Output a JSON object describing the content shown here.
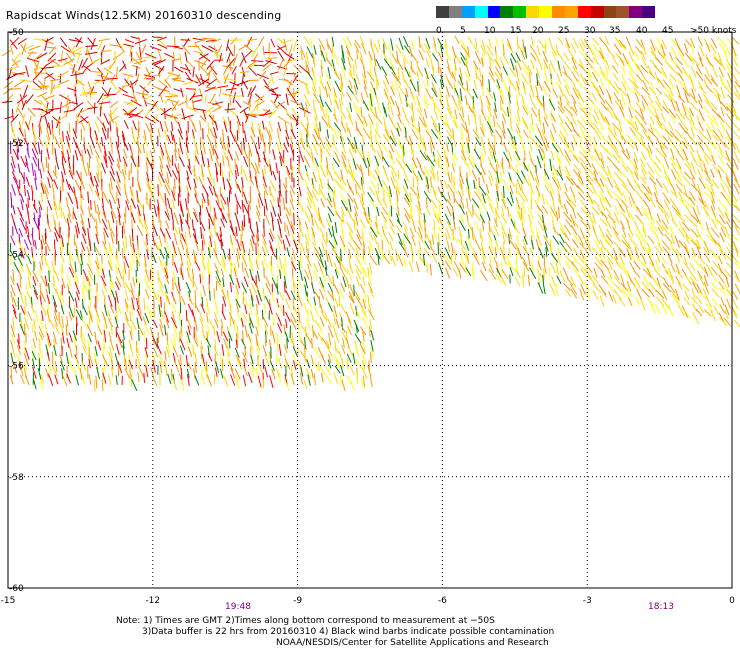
{
  "title": "Rapidscat Winds(12.5KM) 20160310 descending",
  "colorbar": {
    "labels": [
      "0",
      "5",
      "10",
      "15",
      "20",
      "25",
      "30",
      "35",
      "40",
      "45",
      ">50 knots"
    ],
    "colors": [
      "#404040",
      "#808080",
      "#00a0ff",
      "#00ffff",
      "#0000ff",
      "#008000",
      "#00c000",
      "#ffd700",
      "#ffff00",
      "#ff8c00",
      "#ffa500",
      "#ff0000",
      "#c80000",
      "#8b4513",
      "#a0522d",
      "#800080",
      "#4b0082"
    ]
  },
  "axes": {
    "x_ticks": [
      "-15",
      "-12",
      "-9",
      "-6",
      "-3",
      "0"
    ],
    "y_ticks": [
      "-50",
      "-52",
      "-54",
      "-56",
      "-58",
      "-60"
    ],
    "x_range": [
      -15,
      0
    ],
    "y_range": [
      -60,
      -50
    ]
  },
  "times": {
    "left": "19:48",
    "right": "18:13"
  },
  "notes": {
    "line1": "Note: 1) Times are GMT 2)Times along bottom correspond to measurement at −50S",
    "line2": "3)Data buffer is 22 hrs from 20160310 4) Black wind barbs indicate possible contamination",
    "line3": "NOAA/NESDIS/Center for Satellite Applications and Research"
  }
}
